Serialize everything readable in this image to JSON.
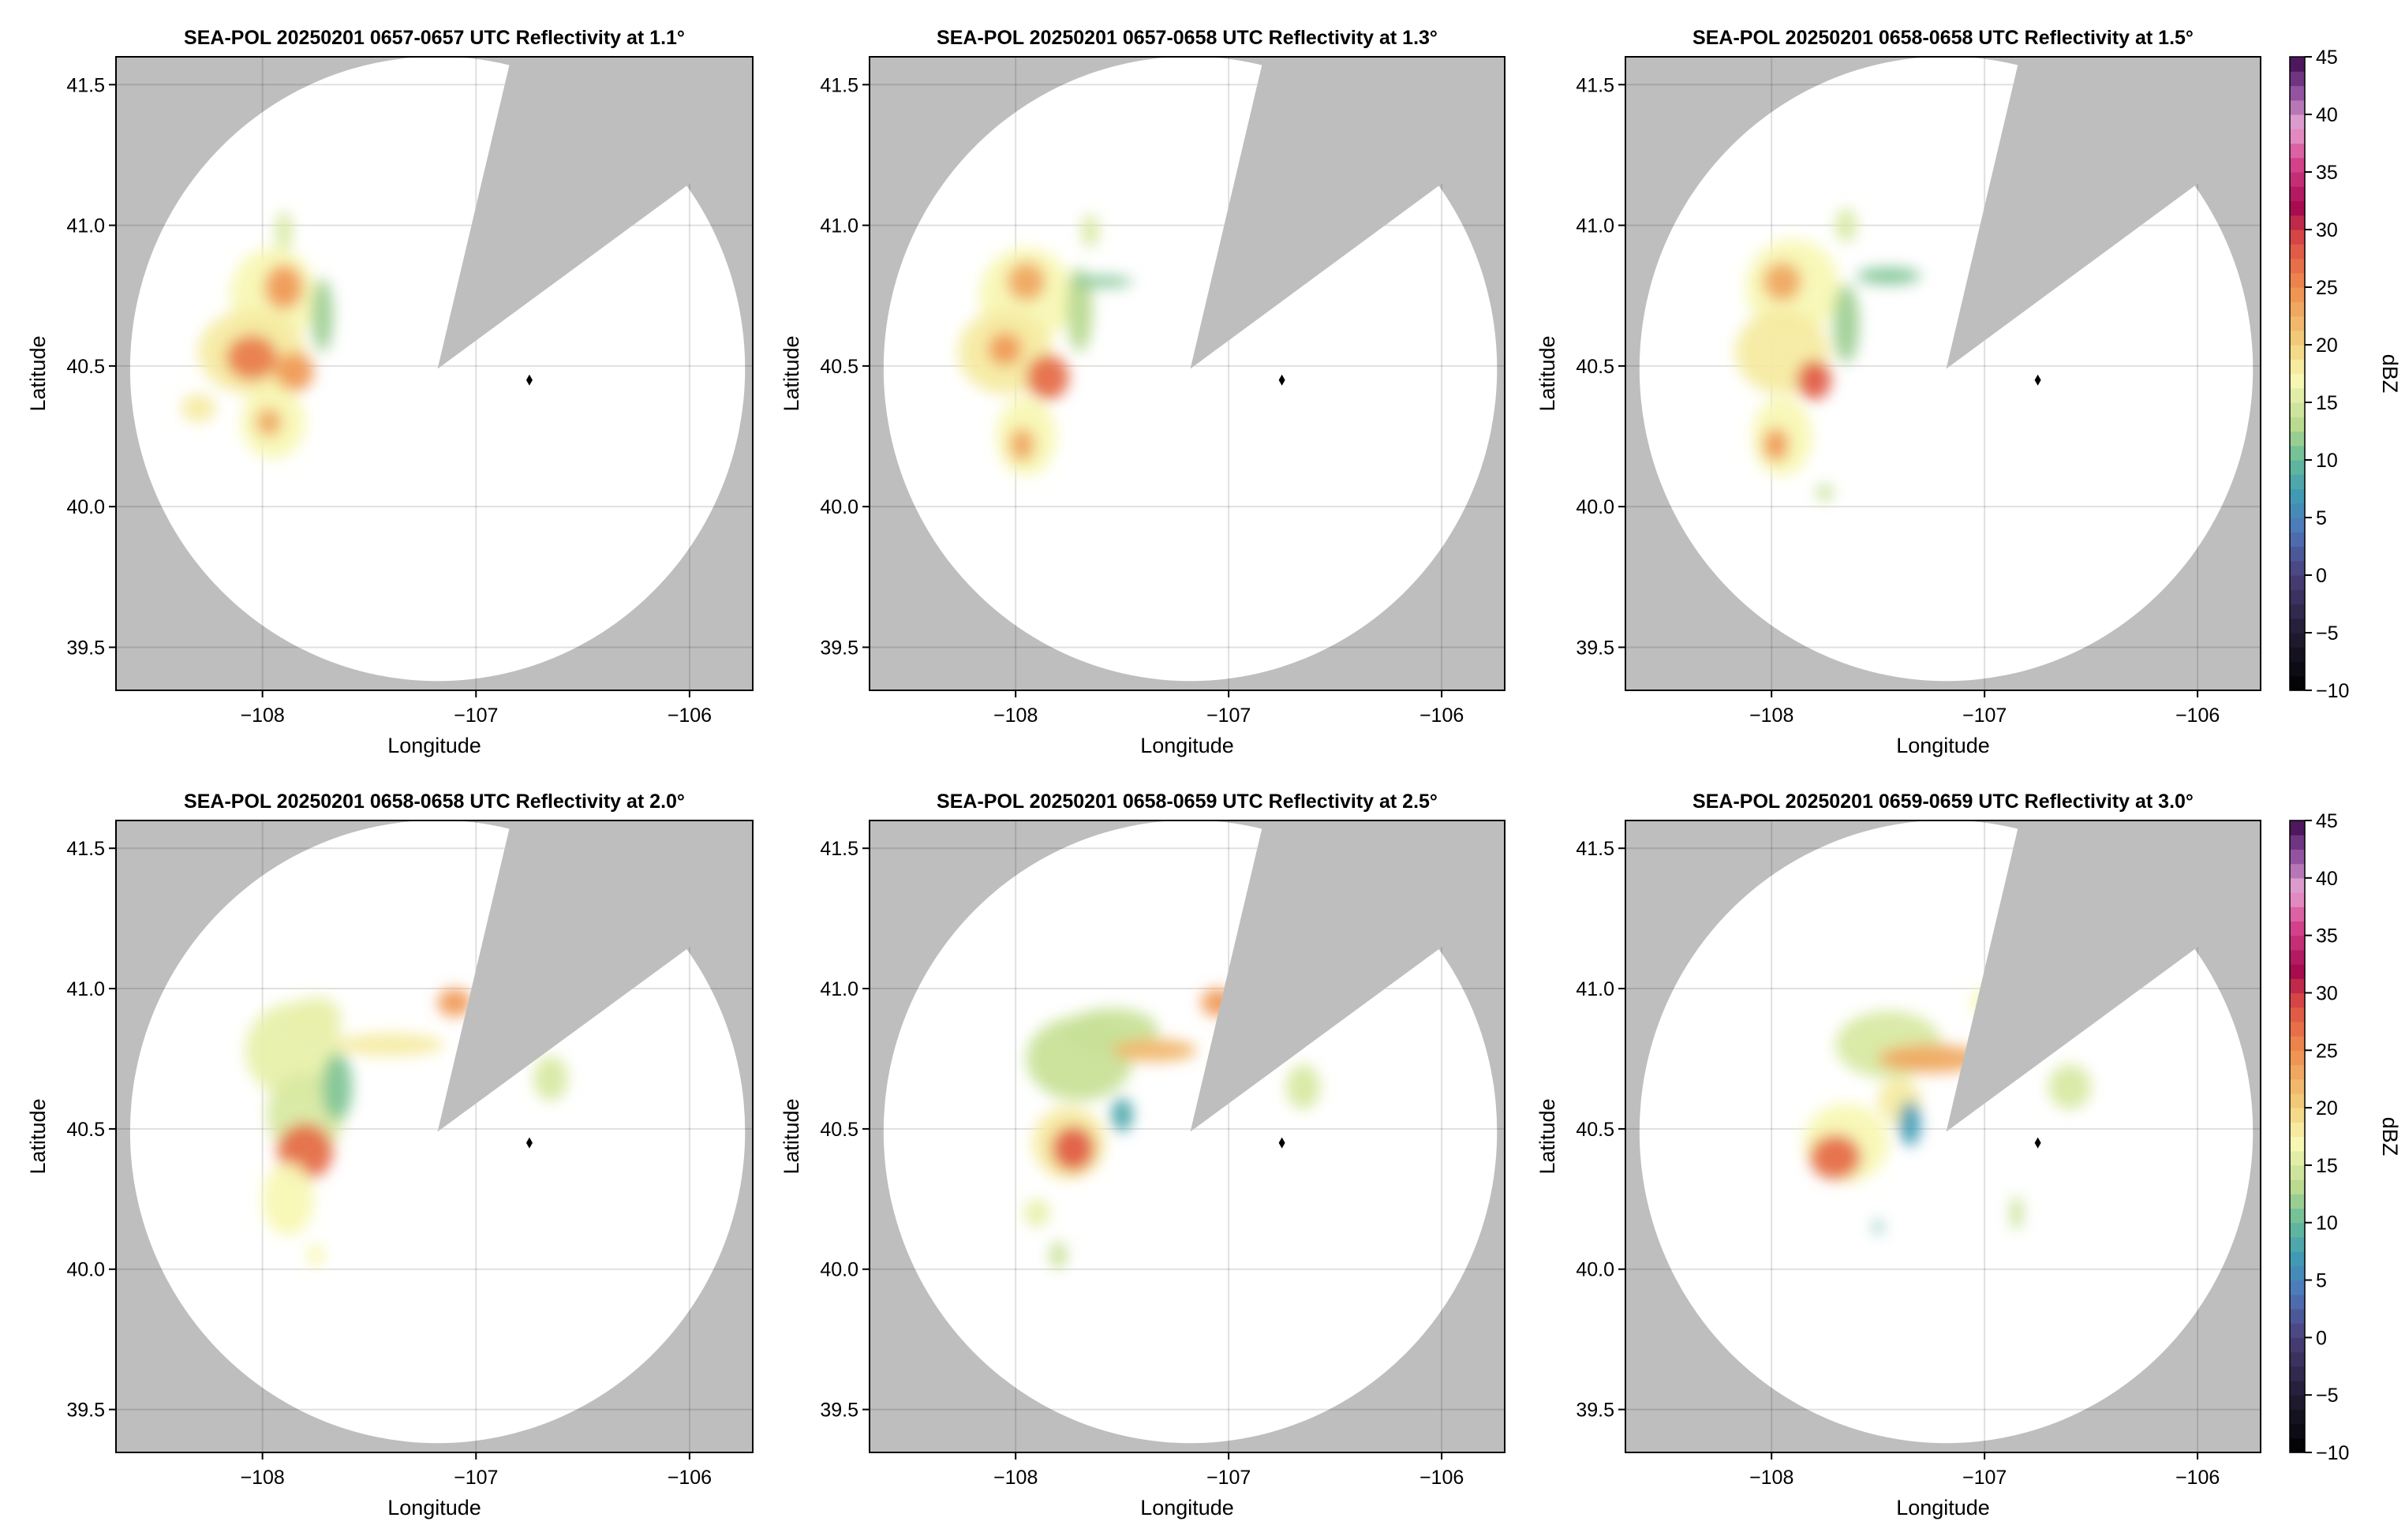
{
  "chart_data": [
    {
      "type": "heatmap",
      "title": "SEA-POL 20250201 0657-0657 UTC Reflectivity at 1.1°",
      "xlabel": "Longitude",
      "ylabel": "Latitude",
      "echoes": [
        [
          -107.95,
          40.75,
          0.2,
          0.17,
          17
        ],
        [
          -107.9,
          40.78,
          0.09,
          0.08,
          24
        ],
        [
          -108.05,
          40.55,
          0.25,
          0.15,
          18
        ],
        [
          -108.05,
          40.53,
          0.12,
          0.08,
          26
        ],
        [
          -107.85,
          40.48,
          0.09,
          0.07,
          24
        ],
        [
          -107.95,
          40.3,
          0.15,
          0.13,
          17
        ],
        [
          -107.97,
          40.3,
          0.06,
          0.05,
          23
        ],
        [
          -108.3,
          40.35,
          0.08,
          0.05,
          18
        ],
        [
          -107.72,
          40.68,
          0.05,
          0.13,
          12
        ],
        [
          -107.9,
          40.98,
          0.04,
          0.07,
          15
        ]
      ]
    },
    {
      "type": "heatmap",
      "title": "SEA-POL 20250201 0657-0658 UTC Reflectivity at 1.3°",
      "xlabel": "Longitude",
      "ylabel": "Latitude",
      "echoes": [
        [
          -107.95,
          40.75,
          0.22,
          0.17,
          17
        ],
        [
          -107.95,
          40.8,
          0.09,
          0.07,
          23
        ],
        [
          -108.05,
          40.55,
          0.22,
          0.15,
          18
        ],
        [
          -107.85,
          40.46,
          0.1,
          0.08,
          27
        ],
        [
          -108.05,
          40.56,
          0.08,
          0.06,
          24
        ],
        [
          -107.95,
          40.25,
          0.14,
          0.14,
          17
        ],
        [
          -107.97,
          40.22,
          0.06,
          0.06,
          23
        ],
        [
          -107.7,
          40.7,
          0.06,
          0.15,
          13
        ],
        [
          -107.6,
          40.8,
          0.15,
          0.02,
          11
        ],
        [
          -107.65,
          40.98,
          0.04,
          0.06,
          15
        ]
      ]
    },
    {
      "type": "heatmap",
      "title": "SEA-POL 20250201 0658-0658 UTC Reflectivity at 1.5°",
      "xlabel": "Longitude",
      "ylabel": "Latitude",
      "echoes": [
        [
          -107.9,
          40.78,
          0.22,
          0.17,
          17
        ],
        [
          -107.95,
          40.8,
          0.09,
          0.07,
          23
        ],
        [
          -107.95,
          40.55,
          0.22,
          0.15,
          18
        ],
        [
          -107.8,
          40.45,
          0.08,
          0.07,
          28
        ],
        [
          -107.95,
          40.25,
          0.14,
          0.14,
          17
        ],
        [
          -107.98,
          40.22,
          0.06,
          0.06,
          24
        ],
        [
          -107.65,
          40.65,
          0.06,
          0.14,
          12
        ],
        [
          -107.45,
          40.82,
          0.15,
          0.03,
          11
        ],
        [
          -107.65,
          41.0,
          0.05,
          0.06,
          15
        ],
        [
          -107.75,
          40.05,
          0.04,
          0.03,
          14
        ]
      ]
    },
    {
      "type": "heatmap",
      "title": "SEA-POL 20250201 0658-0658 UTC Reflectivity at 2.0°",
      "xlabel": "Longitude",
      "ylabel": "Latitude",
      "echoes": [
        [
          -107.85,
          40.78,
          0.23,
          0.17,
          16
        ],
        [
          -107.75,
          40.9,
          0.12,
          0.07,
          16
        ],
        [
          -107.8,
          40.55,
          0.18,
          0.15,
          15
        ],
        [
          -107.8,
          40.42,
          0.13,
          0.1,
          27
        ],
        [
          -107.88,
          40.25,
          0.12,
          0.13,
          17
        ],
        [
          -107.65,
          40.65,
          0.07,
          0.12,
          11
        ],
        [
          -107.4,
          40.8,
          0.25,
          0.04,
          18
        ],
        [
          -107.1,
          40.95,
          0.08,
          0.05,
          24
        ],
        [
          -106.65,
          40.68,
          0.08,
          0.08,
          15
        ],
        [
          -107.75,
          40.05,
          0.04,
          0.04,
          17
        ]
      ]
    },
    {
      "type": "heatmap",
      "title": "SEA-POL 20250201 0658-0659 UTC Reflectivity at 2.5°",
      "xlabel": "Longitude",
      "ylabel": "Latitude",
      "echoes": [
        [
          -107.7,
          40.75,
          0.25,
          0.15,
          14
        ],
        [
          -107.55,
          40.85,
          0.22,
          0.08,
          14
        ],
        [
          -107.75,
          40.45,
          0.17,
          0.13,
          18
        ],
        [
          -107.73,
          40.43,
          0.1,
          0.08,
          28
        ],
        [
          -107.35,
          40.78,
          0.2,
          0.04,
          22
        ],
        [
          -107.05,
          40.95,
          0.08,
          0.05,
          24
        ],
        [
          -107.5,
          40.55,
          0.05,
          0.06,
          8
        ],
        [
          -106.65,
          40.65,
          0.08,
          0.08,
          15
        ],
        [
          -107.9,
          40.2,
          0.06,
          0.05,
          16
        ],
        [
          -107.8,
          40.05,
          0.04,
          0.05,
          14
        ]
      ]
    },
    {
      "type": "heatmap",
      "title": "SEA-POL 20250201 0659-0659 UTC Reflectivity at 3.0°",
      "xlabel": "Longitude",
      "ylabel": "Latitude",
      "echoes": [
        [
          -107.45,
          40.8,
          0.25,
          0.12,
          15
        ],
        [
          -107.25,
          40.75,
          0.25,
          0.05,
          23
        ],
        [
          -107.65,
          40.45,
          0.2,
          0.14,
          17
        ],
        [
          -107.7,
          40.4,
          0.12,
          0.08,
          27
        ],
        [
          -107.4,
          40.6,
          0.1,
          0.08,
          18
        ],
        [
          -107.35,
          40.52,
          0.05,
          0.08,
          7
        ],
        [
          -107.0,
          40.95,
          0.06,
          0.05,
          17
        ],
        [
          -106.6,
          40.65,
          0.1,
          0.08,
          15
        ],
        [
          -106.85,
          40.2,
          0.03,
          0.06,
          14
        ],
        [
          -107.5,
          40.15,
          0.02,
          0.02,
          9
        ]
      ]
    }
  ],
  "axes": {
    "xlim": [
      -108.686,
      -105.704
    ],
    "ylim": [
      39.347,
      41.599
    ],
    "xticks": [
      {
        "v": -108,
        "label": "−108"
      },
      {
        "v": -107,
        "label": "−107"
      },
      {
        "v": -106,
        "label": "−106"
      }
    ],
    "yticks": [
      {
        "v": 39.5,
        "label": "39.5"
      },
      {
        "v": 40.0,
        "label": "40.0"
      },
      {
        "v": 40.5,
        "label": "40.5"
      },
      {
        "v": 41.0,
        "label": "41.0"
      },
      {
        "v": 41.5,
        "label": "41.5"
      }
    ],
    "radar_center": [
      -107.18,
      40.49
    ],
    "range_lon": 1.44,
    "range_lat": 1.11,
    "blocked_sector": [
      [
        -106.85,
        41.55
      ],
      [
        -106.05,
        41.12
      ]
    ],
    "marker": [
      -106.75,
      40.45
    ]
  },
  "colorbar": {
    "label": "dBZ",
    "range": [
      -10,
      45
    ],
    "ticks": [
      {
        "v": -10,
        "label": "−10"
      },
      {
        "v": -5,
        "label": "−5"
      },
      {
        "v": 0,
        "label": "0"
      },
      {
        "v": 5,
        "label": "5"
      },
      {
        "v": 10,
        "label": "10"
      },
      {
        "v": 15,
        "label": "15"
      },
      {
        "v": 20,
        "label": "20"
      },
      {
        "v": 25,
        "label": "25"
      },
      {
        "v": 30,
        "label": "30"
      },
      {
        "v": 35,
        "label": "35"
      },
      {
        "v": 40,
        "label": "40"
      },
      {
        "v": 45,
        "label": "45"
      }
    ],
    "stops": [
      [
        -10,
        "#000000"
      ],
      [
        -5,
        "#221c33"
      ],
      [
        0,
        "#4a3f7a"
      ],
      [
        4,
        "#4f77bb"
      ],
      [
        7,
        "#3f9bb4"
      ],
      [
        10,
        "#66bb99"
      ],
      [
        13,
        "#b8d98f"
      ],
      [
        17,
        "#f8f8b4"
      ],
      [
        20,
        "#f2d27e"
      ],
      [
        25,
        "#ef8d4f"
      ],
      [
        29,
        "#dc4e45"
      ],
      [
        32,
        "#a6094f"
      ],
      [
        36,
        "#d6478f"
      ],
      [
        39,
        "#e7a6d4"
      ],
      [
        42,
        "#8f4f9f"
      ],
      [
        45,
        "#3c0a4c"
      ]
    ]
  },
  "colors": {
    "blocked": "#bebebe",
    "grid": "#d9d9d9",
    "marker": "#000000"
  }
}
